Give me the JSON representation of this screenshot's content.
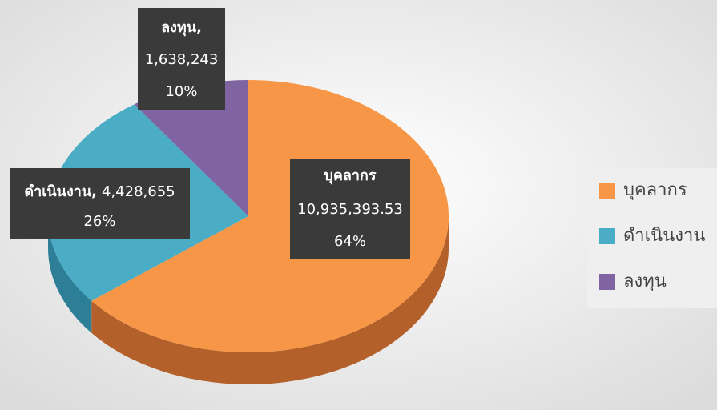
{
  "chart_data": {
    "type": "pie3d",
    "categories": [
      "บุคลากร",
      "ดำเนินงาน",
      "ลงทุน"
    ],
    "values": [
      10935393.53,
      4428655,
      1638243
    ],
    "value_labels": [
      "10,935,393.53",
      "4,428,655",
      "1,638,243"
    ],
    "percentages": [
      64,
      26,
      10
    ],
    "percentage_labels": [
      "64%",
      "26%",
      "10%"
    ],
    "label_separator": ",",
    "colors": [
      "#f79646",
      "#4bacc6",
      "#8064a2"
    ],
    "wall_colors": [
      "#b3602a",
      "#2d7f97",
      "#5a437a"
    ],
    "legend": "right"
  }
}
